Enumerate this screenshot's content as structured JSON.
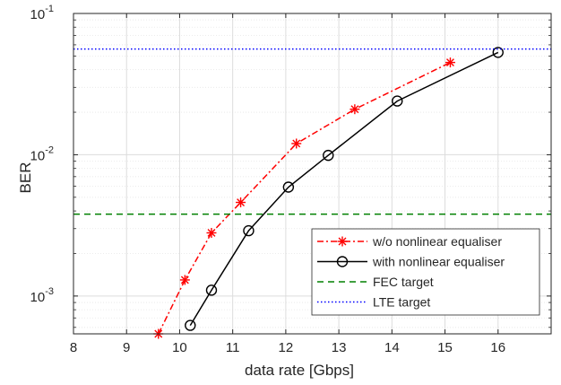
{
  "chart_data": {
    "type": "line",
    "xlabel": "data rate [Gbps]",
    "ylabel": "BER",
    "xlim": [
      8,
      17
    ],
    "ylim": [
      0.00054,
      0.1
    ],
    "yscale": "log",
    "grid": true,
    "minor_grid": true,
    "legend_position": "bottom-right",
    "x_ticks": [
      8,
      9,
      10,
      11,
      12,
      13,
      14,
      15,
      16
    ],
    "x_tick_labels": [
      "8",
      "9",
      "10",
      "11",
      "12",
      "13",
      "14",
      "15",
      "16"
    ],
    "y_ticks": [
      {
        "value": 0.001,
        "base": "10",
        "exp": "-3"
      },
      {
        "value": 0.01,
        "base": "10",
        "exp": "-2"
      },
      {
        "value": 0.1,
        "base": "10",
        "exp": "-1"
      }
    ],
    "series": [
      {
        "name": "w/o nonlinear equaliser",
        "color": "#ff0000",
        "line_style": "dash-dot",
        "marker": "asterisk",
        "x": [
          9.6,
          10.1,
          10.6,
          11.15,
          12.2,
          13.3,
          15.1
        ],
        "y": [
          0.00054,
          0.0013,
          0.0028,
          0.0046,
          0.012,
          0.021,
          0.045
        ]
      },
      {
        "name": "with nonlinear equaliser",
        "color": "#000000",
        "line_style": "solid",
        "marker": "circle",
        "x": [
          10.2,
          10.6,
          11.3,
          12.05,
          12.8,
          14.1,
          16.0
        ],
        "y": [
          0.00062,
          0.0011,
          0.0029,
          0.0059,
          0.0099,
          0.024,
          0.053
        ]
      },
      {
        "name": "FEC target",
        "color": "#008000",
        "line_style": "dashed",
        "marker": "none",
        "x": [
          8,
          17
        ],
        "y": [
          0.0038,
          0.0038
        ]
      },
      {
        "name": "LTE target",
        "color": "#0000ff",
        "line_style": "dotted",
        "marker": "none",
        "x": [
          8,
          17
        ],
        "y": [
          0.056,
          0.056
        ]
      }
    ]
  }
}
